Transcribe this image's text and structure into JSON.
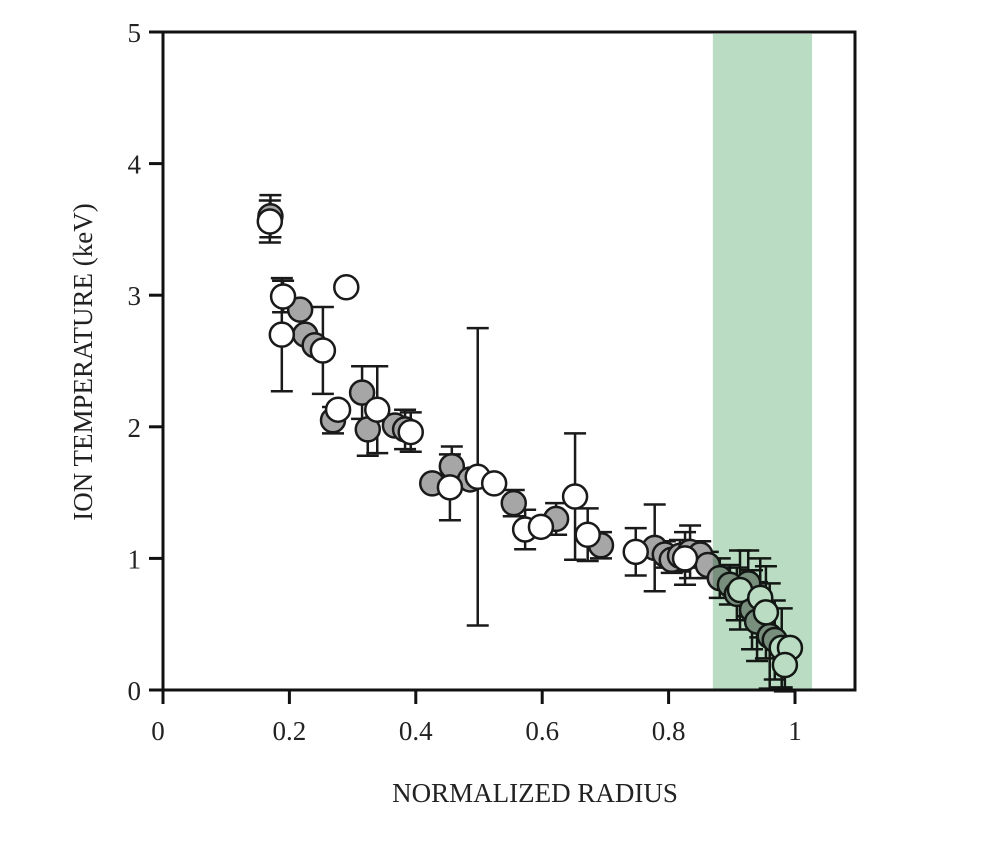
{
  "chart_data": {
    "type": "scatter",
    "title": "",
    "xlabel": "NORMALIZED RADIUS",
    "ylabel": "ION TEMPERATURE (keV)",
    "xlim": [
      0,
      1.1
    ],
    "ylim": [
      0,
      5
    ],
    "xticks": [
      0,
      0.2,
      0.4,
      0.6,
      0.8,
      1
    ],
    "xtick_labels": [
      "0",
      "0.2",
      "0.4",
      "0.6",
      "0.8",
      "1"
    ],
    "yticks": [
      0,
      1,
      2,
      3,
      4,
      5
    ],
    "ytick_labels": [
      "0",
      "1",
      "2",
      "3",
      "4",
      "5"
    ],
    "grid": false,
    "shaded_region": {
      "x": [
        0.87,
        1.027
      ],
      "color": "#b9dcc2"
    },
    "colors": {
      "filled": "#a6a6a6",
      "open": "#ffffff",
      "edge": "#1a1a1a"
    },
    "series": [
      {
        "name": "filled",
        "points": [
          {
            "x": 0.17,
            "y": 3.6,
            "err": 0.16
          },
          {
            "x": 0.217,
            "y": 2.89,
            "err": 0
          },
          {
            "x": 0.225,
            "y": 2.7,
            "err": 0
          },
          {
            "x": 0.24,
            "y": 2.62,
            "err": 0
          },
          {
            "x": 0.269,
            "y": 2.05,
            "err": 0.1
          },
          {
            "x": 0.315,
            "y": 2.26,
            "err": 0.2
          },
          {
            "x": 0.324,
            "y": 1.98,
            "err": 0.2
          },
          {
            "x": 0.367,
            "y": 2.01,
            "err": 0
          },
          {
            "x": 0.383,
            "y": 1.98,
            "err": 0.15
          },
          {
            "x": 0.426,
            "y": 1.57,
            "err": 0
          },
          {
            "x": 0.457,
            "y": 1.7,
            "err": 0.15
          },
          {
            "x": 0.486,
            "y": 1.6,
            "err": 0
          },
          {
            "x": 0.555,
            "y": 1.42,
            "err": 0.1
          },
          {
            "x": 0.622,
            "y": 1.3,
            "err": 0.12
          },
          {
            "x": 0.693,
            "y": 1.1,
            "err": 0.1
          },
          {
            "x": 0.778,
            "y": 1.08,
            "err": 0.33
          },
          {
            "x": 0.794,
            "y": 1.03,
            "err": 0.1
          },
          {
            "x": 0.805,
            "y": 0.99,
            "err": 0.1
          },
          {
            "x": 0.818,
            "y": 1.02,
            "err": 0.12
          },
          {
            "x": 0.834,
            "y": 1.05,
            "err": 0.2
          },
          {
            "x": 0.85,
            "y": 1.03,
            "err": 0.1
          },
          {
            "x": 0.862,
            "y": 0.95,
            "err": 0.1
          },
          {
            "x": 0.881,
            "y": 0.85,
            "err": 0.15
          },
          {
            "x": 0.897,
            "y": 0.8,
            "err": 0.15
          },
          {
            "x": 0.908,
            "y": 0.73,
            "err": 0.2
          },
          {
            "x": 0.926,
            "y": 0.81,
            "err": 0.25
          },
          {
            "x": 0.932,
            "y": 0.61,
            "err": 0.3
          },
          {
            "x": 0.94,
            "y": 0.52,
            "err": 0.3
          },
          {
            "x": 0.96,
            "y": 0.41,
            "err": 0.4
          },
          {
            "x": 0.968,
            "y": 0.38,
            "err": 0.3
          }
        ]
      },
      {
        "name": "open",
        "points": [
          {
            "x": 0.169,
            "y": 3.56,
            "err": 0.16
          },
          {
            "x": 0.19,
            "y": 2.99,
            "err": 0.12
          },
          {
            "x": 0.188,
            "y": 2.7,
            "err": 0.43
          },
          {
            "x": 0.253,
            "y": 2.58,
            "err": 0.33
          },
          {
            "x": 0.29,
            "y": 3.06,
            "err": 0
          },
          {
            "x": 0.277,
            "y": 2.13,
            "err": 0
          },
          {
            "x": 0.339,
            "y": 2.13,
            "err": 0.33
          },
          {
            "x": 0.392,
            "y": 1.96,
            "err": 0.15
          },
          {
            "x": 0.454,
            "y": 1.54,
            "err": 0.25
          },
          {
            "x": 0.498,
            "y": 1.62,
            "err": 1.13
          },
          {
            "x": 0.524,
            "y": 1.57,
            "err": 0
          },
          {
            "x": 0.573,
            "y": 1.22,
            "err": 0.15
          },
          {
            "x": 0.598,
            "y": 1.24,
            "err": 0
          },
          {
            "x": 0.652,
            "y": 1.47,
            "err": 0.48
          },
          {
            "x": 0.672,
            "y": 1.18,
            "err": 0.2
          },
          {
            "x": 0.748,
            "y": 1.05,
            "err": 0.18
          },
          {
            "x": 0.826,
            "y": 1.0,
            "err": 0.2
          },
          {
            "x": 0.913,
            "y": 0.76,
            "err": 0.3
          },
          {
            "x": 0.945,
            "y": 0.7,
            "err": 0.3
          },
          {
            "x": 0.954,
            "y": 0.59,
            "err": 0.35
          },
          {
            "x": 0.979,
            "y": 0.32,
            "err": 0.3
          },
          {
            "x": 0.992,
            "y": 0.32,
            "err": 0
          },
          {
            "x": 0.984,
            "y": 0.19,
            "err": 0.2
          }
        ]
      }
    ]
  }
}
